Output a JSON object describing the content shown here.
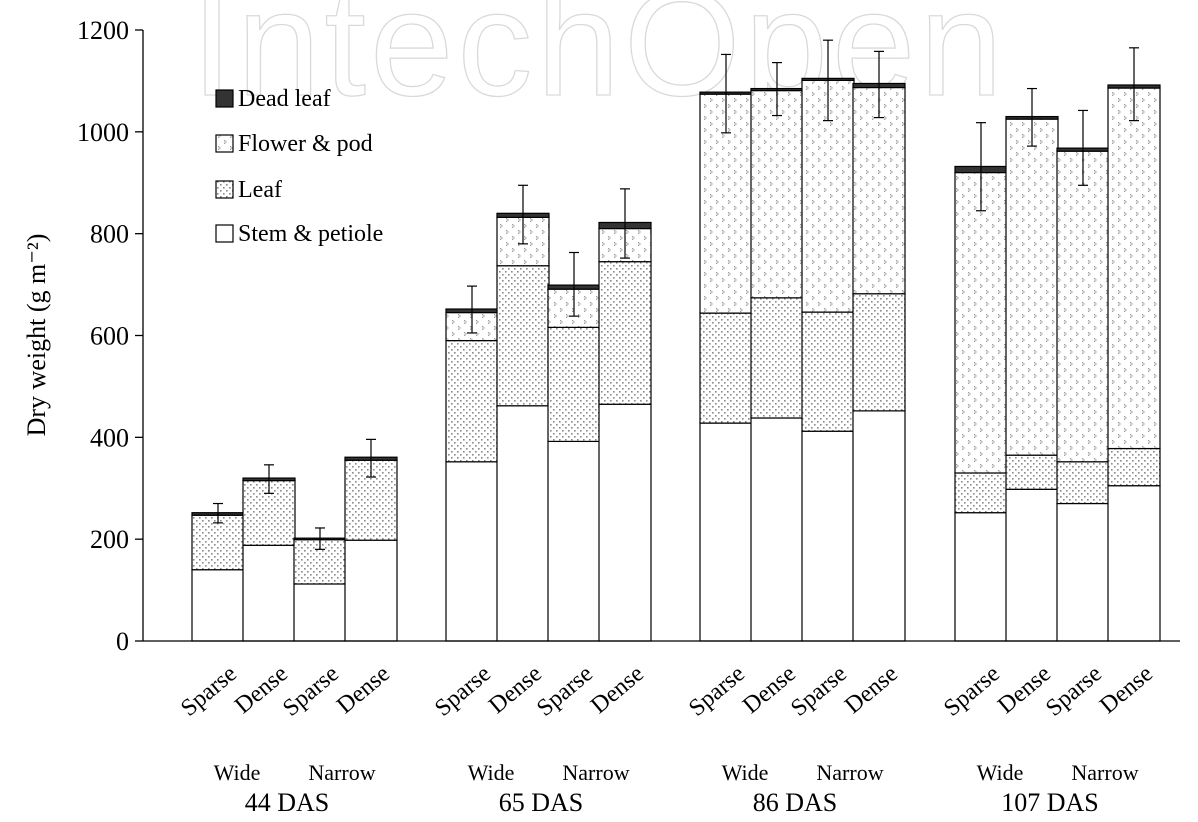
{
  "watermark": "IntechOpen",
  "chart_data": {
    "type": "bar",
    "stacked": true,
    "ylabel": "Dry weight (g m⁻²)",
    "ylim": [
      0,
      1200
    ],
    "yticks": [
      0,
      200,
      400,
      600,
      800,
      1000,
      1200
    ],
    "grid": false,
    "legend_position": "top-left",
    "groups": [
      "44 DAS",
      "65 DAS",
      "86 DAS",
      "107 DAS"
    ],
    "subgroups": [
      "Wide",
      "Narrow"
    ],
    "categories": [
      "Sparse",
      "Dense",
      "Sparse",
      "Dense",
      "Sparse",
      "Dense",
      "Sparse",
      "Dense",
      "Sparse",
      "Dense",
      "Sparse",
      "Dense",
      "Sparse",
      "Dense",
      "Sparse",
      "Dense"
    ],
    "series": [
      {
        "name": "Stem & petiole",
        "values": [
          140,
          188,
          112,
          198,
          352,
          462,
          392,
          465,
          428,
          438,
          412,
          452,
          252,
          298,
          270,
          305
        ]
      },
      {
        "name": "Leaf",
        "values": [
          107,
          127,
          87,
          157,
          238,
          275,
          224,
          280,
          216,
          236,
          234,
          230,
          78,
          67,
          82,
          73
        ]
      },
      {
        "name": "Flower & pod",
        "values": [
          0,
          0,
          0,
          0,
          55,
          95,
          75,
          65,
          430,
          407,
          455,
          405,
          590,
          660,
          610,
          708
        ]
      },
      {
        "name": "Dead leaf",
        "values": [
          5,
          5,
          3,
          6,
          7,
          8,
          8,
          12,
          4,
          4,
          4,
          8,
          12,
          5,
          6,
          6
        ]
      }
    ],
    "error_bars": [
      {
        "center": 250,
        "low": 232,
        "high": 270
      },
      {
        "center": 318,
        "low": 290,
        "high": 346
      },
      {
        "center": 200,
        "low": 180,
        "high": 222
      },
      {
        "center": 360,
        "low": 322,
        "high": 396
      },
      {
        "center": 650,
        "low": 605,
        "high": 697
      },
      {
        "center": 838,
        "low": 780,
        "high": 895
      },
      {
        "center": 700,
        "low": 638,
        "high": 763
      },
      {
        "center": 820,
        "low": 752,
        "high": 888
      },
      {
        "center": 1075,
        "low": 998,
        "high": 1152
      },
      {
        "center": 1083,
        "low": 1032,
        "high": 1136
      },
      {
        "center": 1103,
        "low": 1022,
        "high": 1180
      },
      {
        "center": 1095,
        "low": 1028,
        "high": 1158
      },
      {
        "center": 932,
        "low": 845,
        "high": 1018
      },
      {
        "center": 1030,
        "low": 972,
        "high": 1085
      },
      {
        "center": 968,
        "low": 895,
        "high": 1042
      },
      {
        "center": 1092,
        "low": 1022,
        "high": 1165
      }
    ]
  }
}
